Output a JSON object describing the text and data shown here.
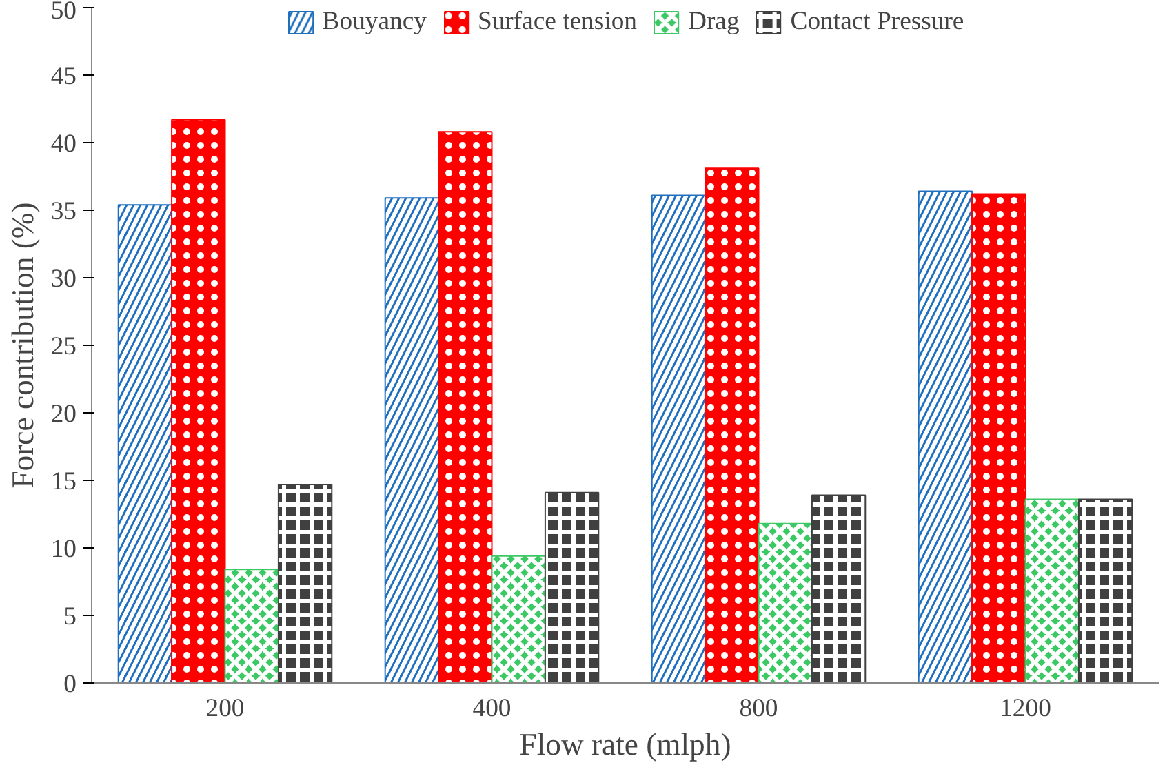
{
  "chart_data": {
    "type": "bar",
    "xlabel": "Flow rate (mlph)",
    "ylabel": "Force contribution (%)",
    "categories": [
      "200",
      "400",
      "800",
      "1200"
    ],
    "series": [
      {
        "name": "Bouyancy",
        "color": "#1f6fbf",
        "values": [
          35.4,
          35.9,
          36.1,
          36.4
        ]
      },
      {
        "name": "Surface tension",
        "color": "#ff0000",
        "values": [
          41.7,
          40.8,
          38.1,
          36.2
        ]
      },
      {
        "name": "Drag",
        "color": "#3cc864",
        "values": [
          8.4,
          9.4,
          11.8,
          13.6
        ]
      },
      {
        "name": "Contact Pressure",
        "color": "#404040",
        "values": [
          14.7,
          14.1,
          13.9,
          13.6
        ]
      }
    ],
    "ylim": [
      0,
      50
    ],
    "yticks": [
      0,
      5,
      10,
      15,
      20,
      25,
      30,
      35,
      40,
      45,
      50
    ],
    "grid": false,
    "legend": "top"
  }
}
